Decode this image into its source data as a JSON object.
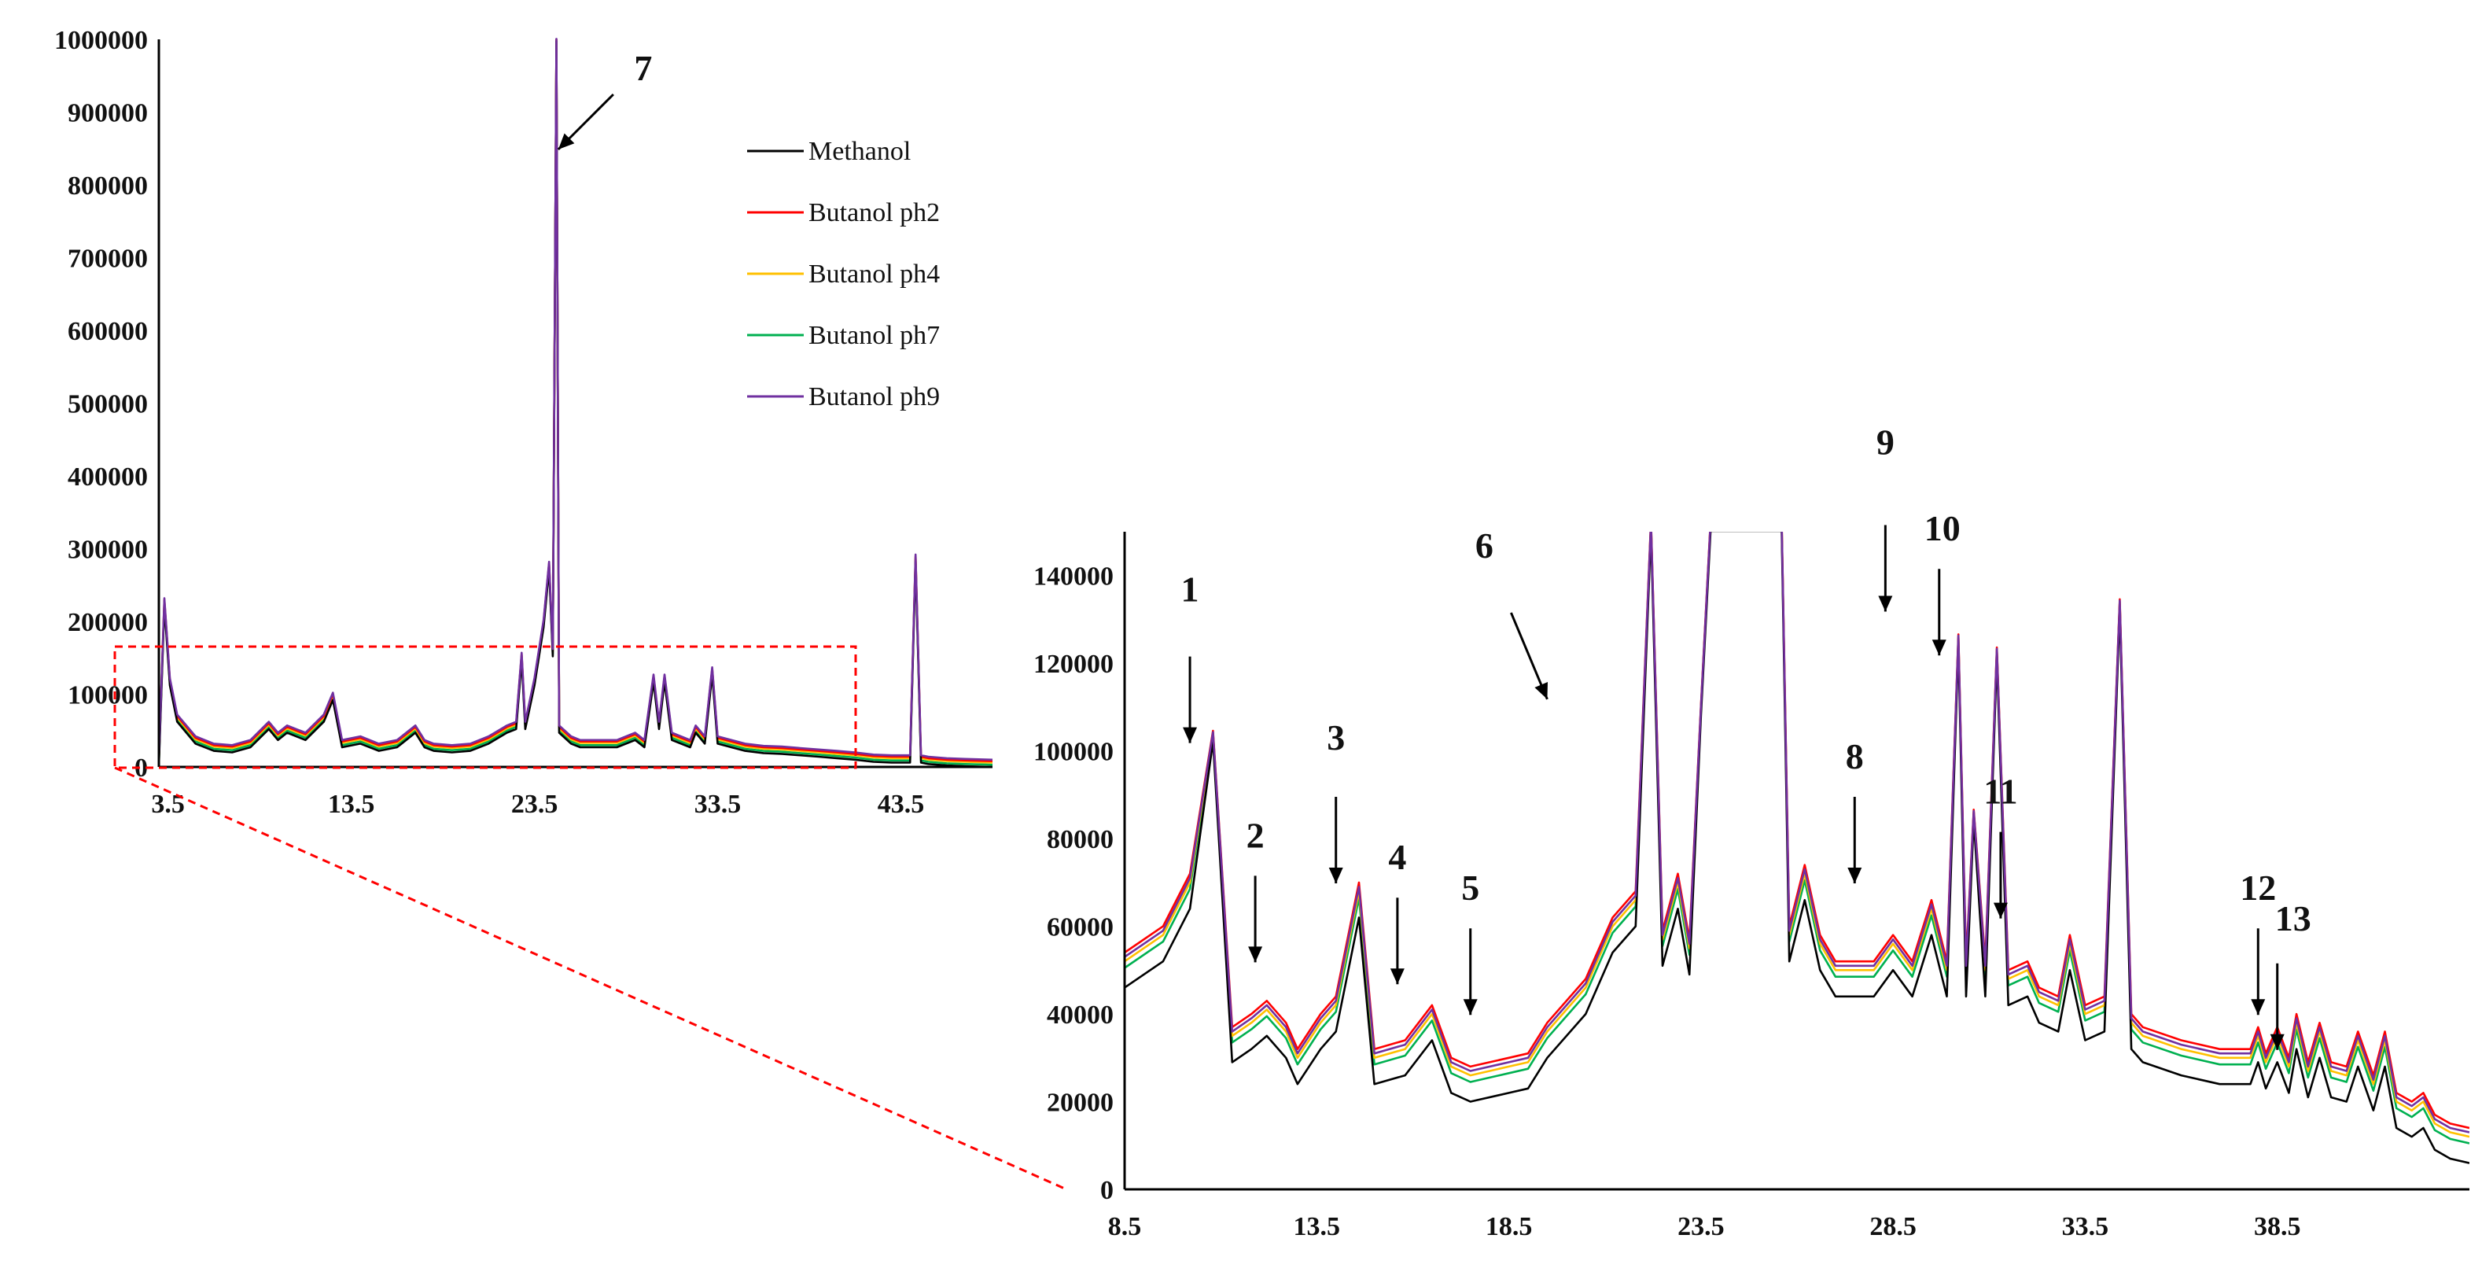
{
  "series_colors": {
    "Methanol": "#000000",
    "Butanol ph2": "#ff0000",
    "Butanol ph4": "#ffc000",
    "Butanol ph7": "#00b050",
    "Butanol ph9": "#7030a0"
  },
  "chart_data": [
    {
      "type": "line",
      "panel": "full chromatogram",
      "xlim": [
        3,
        48.5
      ],
      "ylim": [
        0,
        1000000
      ],
      "x_ticks": [
        "3.5",
        "13.5",
        "23.5",
        "33.5",
        "43.5"
      ],
      "y_ticks": [
        "0",
        "100000",
        "200000",
        "300000",
        "400000",
        "500000",
        "600000",
        "700000",
        "800000",
        "900000",
        "1000000"
      ],
      "legend": [
        "Methanol",
        "Butanol ph2",
        "Butanol ph4",
        "Butanol ph7",
        "Butanol ph9"
      ],
      "legend_position": "top-right",
      "annotations": [
        {
          "label": "7",
          "x": 24.2,
          "y": 1000000
        }
      ],
      "baseline": [
        [
          3,
          10000
        ],
        [
          3.3,
          230000
        ],
        [
          3.6,
          120000
        ],
        [
          4,
          70000
        ],
        [
          5,
          40000
        ],
        [
          6,
          30000
        ],
        [
          7,
          28000
        ],
        [
          8,
          35000
        ],
        [
          9,
          60000
        ],
        [
          9.5,
          45000
        ],
        [
          10,
          55000
        ],
        [
          11,
          45000
        ],
        [
          12,
          70000
        ],
        [
          12.5,
          100000
        ],
        [
          13,
          35000
        ],
        [
          14,
          40000
        ],
        [
          15,
          30000
        ],
        [
          16,
          35000
        ],
        [
          17,
          55000
        ],
        [
          17.5,
          35000
        ],
        [
          18,
          30000
        ],
        [
          19,
          28000
        ],
        [
          20,
          30000
        ],
        [
          21,
          40000
        ],
        [
          22,
          55000
        ],
        [
          22.5,
          60000
        ],
        [
          22.8,
          155000
        ],
        [
          23,
          60000
        ],
        [
          23.5,
          120000
        ],
        [
          24,
          200000
        ],
        [
          24.3,
          280000
        ],
        [
          24.5,
          160000
        ],
        [
          24.7,
          1000000
        ],
        [
          24.85,
          55000
        ],
        [
          25.5,
          40000
        ],
        [
          26,
          35000
        ],
        [
          27,
          35000
        ],
        [
          28,
          35000
        ],
        [
          29,
          45000
        ],
        [
          29.5,
          35000
        ],
        [
          30,
          125000
        ],
        [
          30.3,
          60000
        ],
        [
          30.6,
          125000
        ],
        [
          31,
          45000
        ],
        [
          32,
          35000
        ],
        [
          32.3,
          55000
        ],
        [
          32.8,
          40000
        ],
        [
          33.2,
          135000
        ],
        [
          33.5,
          40000
        ],
        [
          35,
          30000
        ],
        [
          36,
          27000
        ],
        [
          37,
          26000
        ],
        [
          38,
          24000
        ],
        [
          39,
          22000
        ],
        [
          40,
          20000
        ],
        [
          41,
          18000
        ],
        [
          42,
          15000
        ],
        [
          43,
          14000
        ],
        [
          44,
          14000
        ],
        [
          44.3,
          290000
        ],
        [
          44.6,
          14000
        ],
        [
          45,
          12000
        ],
        [
          46,
          10000
        ],
        [
          47,
          9000
        ],
        [
          48.5,
          8000
        ]
      ],
      "offsets": {
        "Methanol": -8000,
        "Butanol ph2": 0,
        "Butanol ph4": -2000,
        "Butanol ph7": -5000,
        "Butanol ph9": 2000
      }
    },
    {
      "type": "line",
      "panel": "zoomed chromatogram",
      "xlim": [
        8.5,
        43.5
      ],
      "ylim": [
        0,
        150000
      ],
      "x_ticks": [
        "8.5",
        "13.5",
        "18.5",
        "23.5",
        "28.5",
        "33.5",
        "38.5"
      ],
      "y_ticks": [
        "0",
        "20000",
        "40000",
        "60000",
        "80000",
        "100000",
        "120000",
        "140000"
      ],
      "annotations": [
        {
          "label": "1",
          "x": 10.2,
          "y": 100000
        },
        {
          "label": "2",
          "x": 11.9,
          "y": 50000
        },
        {
          "label": "3",
          "x": 14.0,
          "y": 68000
        },
        {
          "label": "4",
          "x": 15.6,
          "y": 45000
        },
        {
          "label": "5",
          "x": 17.5,
          "y": 38000
        },
        {
          "label": "6",
          "x": 19.5,
          "y": 110000
        },
        {
          "label": "8",
          "x": 27.5,
          "y": 68000
        },
        {
          "label": "9",
          "x": 28.3,
          "y": 130000
        },
        {
          "label": "10",
          "x": 29.7,
          "y": 120000
        },
        {
          "label": "11",
          "x": 31.3,
          "y": 60000
        },
        {
          "label": "12",
          "x": 38.0,
          "y": 38000
        },
        {
          "label": "13",
          "x": 38.5,
          "y": 30000
        }
      ],
      "baseline": [
        [
          8.5,
          52000
        ],
        [
          9.5,
          58000
        ],
        [
          10.2,
          70000
        ],
        [
          10.8,
          104000
        ],
        [
          11.3,
          35000
        ],
        [
          11.8,
          38000
        ],
        [
          12.2,
          41000
        ],
        [
          12.7,
          36000
        ],
        [
          13,
          30000
        ],
        [
          13.6,
          38000
        ],
        [
          14,
          42000
        ],
        [
          14.6,
          68000
        ],
        [
          15,
          30000
        ],
        [
          15.8,
          32000
        ],
        [
          16.5,
          40000
        ],
        [
          17,
          28000
        ],
        [
          17.5,
          26000
        ],
        [
          18.5,
          28000
        ],
        [
          19,
          29000
        ],
        [
          19.5,
          36000
        ],
        [
          20.5,
          46000
        ],
        [
          21.2,
          60000
        ],
        [
          21.8,
          66000
        ],
        [
          22.2,
          152000
        ],
        [
          22.5,
          57000
        ],
        [
          22.9,
          70000
        ],
        [
          23.2,
          55000
        ],
        [
          23.5,
          110000
        ],
        [
          23.75,
          152000
        ],
        [
          25.6,
          152000
        ],
        [
          25.8,
          58000
        ],
        [
          26.2,
          72000
        ],
        [
          26.6,
          56000
        ],
        [
          27,
          50000
        ],
        [
          28,
          50000
        ],
        [
          28.5,
          56000
        ],
        [
          29,
          50000
        ],
        [
          29.5,
          64000
        ],
        [
          29.9,
          50000
        ],
        [
          30.2,
          126000
        ],
        [
          30.4,
          50000
        ],
        [
          30.6,
          86000
        ],
        [
          30.9,
          50000
        ],
        [
          31.2,
          123000
        ],
        [
          31.5,
          48000
        ],
        [
          32,
          50000
        ],
        [
          32.3,
          44000
        ],
        [
          32.8,
          42000
        ],
        [
          33.1,
          56000
        ],
        [
          33.5,
          40000
        ],
        [
          34,
          42000
        ],
        [
          34.4,
          134000
        ],
        [
          34.7,
          38000
        ],
        [
          35,
          35000
        ],
        [
          36,
          32000
        ],
        [
          37,
          30000
        ],
        [
          37.8,
          30000
        ],
        [
          38,
          35000
        ],
        [
          38.2,
          29000
        ],
        [
          38.5,
          35000
        ],
        [
          38.8,
          28000
        ],
        [
          39,
          38000
        ],
        [
          39.3,
          27000
        ],
        [
          39.6,
          36000
        ],
        [
          39.9,
          27000
        ],
        [
          40.3,
          26000
        ],
        [
          40.6,
          34000
        ],
        [
          41,
          24000
        ],
        [
          41.3,
          34000
        ],
        [
          41.6,
          20000
        ],
        [
          42,
          18000
        ],
        [
          42.3,
          20000
        ],
        [
          42.6,
          15000
        ],
        [
          43,
          13000
        ],
        [
          43.5,
          12000
        ]
      ],
      "offsets": {
        "Methanol": -6000,
        "Butanol ph2": 2000,
        "Butanol ph4": 0,
        "Butanol ph7": -1500,
        "Butanol ph9": 1000
      }
    }
  ]
}
